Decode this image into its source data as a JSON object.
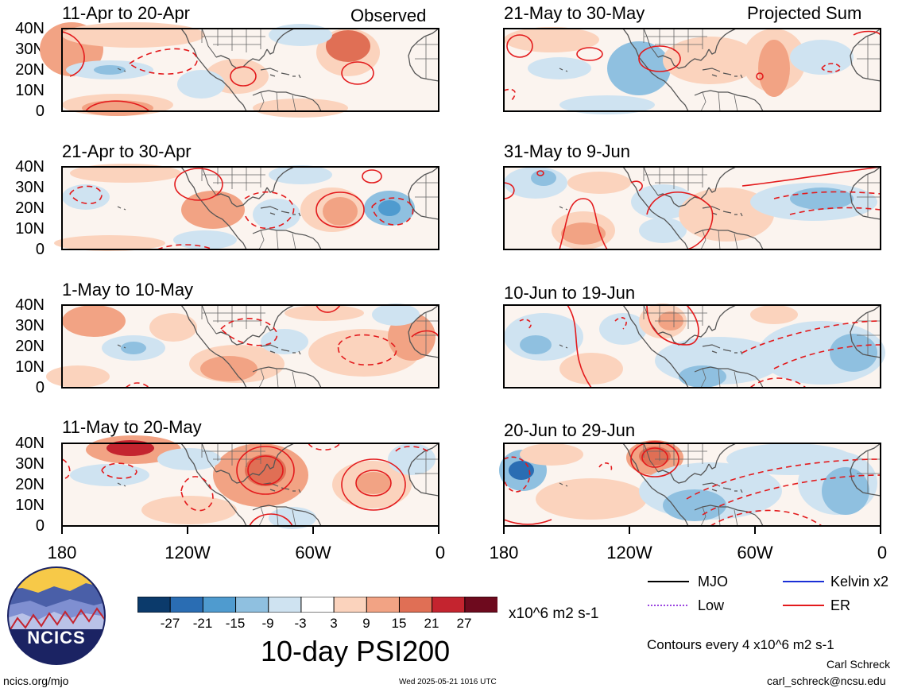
{
  "panels": [
    {
      "id": "obs1",
      "title": "11-Apr to 20-Apr",
      "tag": "Observed"
    },
    {
      "id": "obs2",
      "title": "21-Apr to 30-Apr",
      "tag": ""
    },
    {
      "id": "obs3",
      "title": "1-May to 10-May",
      "tag": ""
    },
    {
      "id": "obs4",
      "title": "11-May to 20-May",
      "tag": ""
    },
    {
      "id": "prj1",
      "title": "21-May to 30-May",
      "tag": "Projected Sum"
    },
    {
      "id": "prj2",
      "title": "31-May to 9-Jun",
      "tag": ""
    },
    {
      "id": "prj3",
      "title": "10-Jun to 19-Jun",
      "tag": ""
    },
    {
      "id": "prj4",
      "title": "20-Jun to 29-Jun",
      "tag": ""
    }
  ],
  "y_ticks": [
    "40N",
    "30N",
    "20N",
    "10N",
    "0"
  ],
  "x_ticks": [
    "180",
    "120W",
    "60W",
    "0"
  ],
  "colorbar": {
    "colors": [
      "#0b3a6b",
      "#2a6db3",
      "#4f9bcf",
      "#8fc0e0",
      "#cfe3f1",
      "#ffffff",
      "#fbd3bd",
      "#f2a384",
      "#e06f55",
      "#c4242f",
      "#6e0a1e"
    ],
    "labels": [
      "-27",
      "-21",
      "-15",
      "-9",
      "-3",
      "3",
      "9",
      "15",
      "21",
      "27"
    ],
    "units": "x10^6 m2 s-1"
  },
  "title": "10-day PSI200",
  "legend": [
    {
      "label": "MJO",
      "color": "#000000",
      "style": "solid"
    },
    {
      "label": "Kelvin x2",
      "color": "#1a2fd6",
      "style": "solid"
    },
    {
      "label": "Low",
      "color": "#9b45e0",
      "style": "dotted"
    },
    {
      "label": "ER",
      "color": "#e31a1c",
      "style": "solid"
    }
  ],
  "contour_note": "Contours every 4 x10^6 m2 s-1",
  "author": "Carl Schreck",
  "email": "carl_schreck@ncsu.edu",
  "website": "ncics.org/mjo",
  "timestamp": "Wed 2025-05-21 1016 UTC",
  "logo": {
    "text": "NCICS"
  },
  "colors": {
    "positive": "#f2a384",
    "negative": "#8fc0e0",
    "er_contour": "#e31a1c",
    "land_outline": "#555555"
  }
}
